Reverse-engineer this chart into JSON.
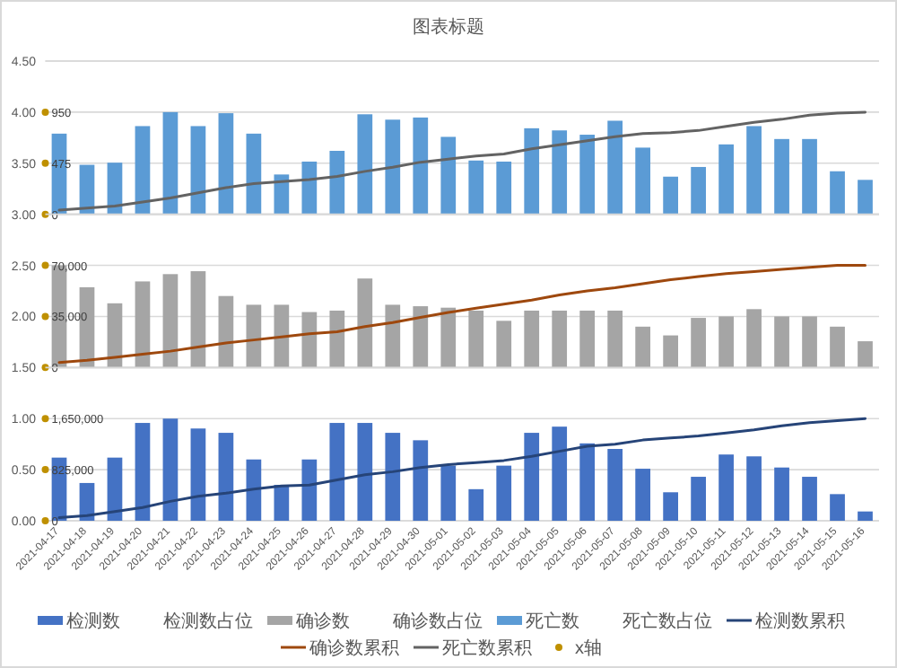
{
  "chart_data": [
    {
      "type": "bar",
      "title": "图表标题",
      "tick_labels": "y",
      "legend": "bottom",
      "categories": [
        "2021-04-17",
        "2021-04-18",
        "2021-04-19",
        "2021-04-20",
        "2021-04-21",
        "2021-04-22",
        "2021-04-23",
        "2021-04-24",
        "2021-04-25",
        "2021-04-26",
        "2021-04-27",
        "2021-04-28",
        "2021-04-29",
        "2021-04-30",
        "2021-05-01",
        "2021-05-02",
        "2021-05-03",
        "2021-05-04",
        "2021-05-05",
        "2021-05-06",
        "2021-05-07",
        "2021-05-08",
        "2021-05-09",
        "2021-05-10",
        "2021-05-11",
        "2021-05-12",
        "2021-05-13",
        "2021-05-14",
        "2021-05-15",
        "2021-05-16"
      ],
      "ylim": [
        3,
        4.5
      ],
      "yticks": [
        {
          "value": 3,
          "label": "3.00"
        },
        {
          "value": 3.5,
          "label": "3.50"
        },
        {
          "value": 4,
          "label": "4.00"
        },
        {
          "value": 4.5,
          "label": "4.50"
        }
      ],
      "y2lim": [
        0,
        1425
      ],
      "y2ticks": [
        0,
        475,
        950
      ],
      "grid": "y",
      "series": [
        {
          "name": "死亡数",
          "color": "#5b9bd5",
          "axis": "y2",
          "values": [
            750,
            460,
            480,
            820,
            950,
            820,
            940,
            750,
            370,
            490,
            590,
            930,
            880,
            900,
            720,
            500,
            490,
            800,
            780,
            740,
            870,
            620,
            350,
            440,
            650,
            820,
            700,
            700,
            400,
            320
          ]
        },
        {
          "name": "死亡数占位",
          "color": null,
          "axis": "y2",
          "values": [
            null,
            null,
            null,
            null,
            null,
            null,
            null,
            null,
            null,
            null,
            null,
            null,
            null,
            null,
            null,
            null,
            null,
            null,
            null,
            null,
            null,
            null,
            null,
            null,
            null,
            null,
            null,
            null,
            null,
            null
          ]
        },
        {
          "name": "死亡数累积",
          "type": "line",
          "color": "#636363",
          "values": [
            3.04,
            3.06,
            3.08,
            3.12,
            3.16,
            3.21,
            3.26,
            3.3,
            3.32,
            3.34,
            3.37,
            3.42,
            3.46,
            3.51,
            3.54,
            3.57,
            3.59,
            3.64,
            3.68,
            3.72,
            3.76,
            3.79,
            3.8,
            3.82,
            3.86,
            3.9,
            3.93,
            3.97,
            3.99,
            4.0
          ]
        }
      ]
    },
    {
      "type": "bar",
      "tick_labels": "y",
      "legend": "bottom",
      "categories": [
        "2021-04-17",
        "2021-04-18",
        "2021-04-19",
        "2021-04-20",
        "2021-04-21",
        "2021-04-22",
        "2021-04-23",
        "2021-04-24",
        "2021-04-25",
        "2021-04-26",
        "2021-04-27",
        "2021-04-28",
        "2021-04-29",
        "2021-04-30",
        "2021-05-01",
        "2021-05-02",
        "2021-05-03",
        "2021-05-04",
        "2021-05-05",
        "2021-05-06",
        "2021-05-07",
        "2021-05-08",
        "2021-05-09",
        "2021-05-10",
        "2021-05-11",
        "2021-05-12",
        "2021-05-13",
        "2021-05-14",
        "2021-05-15",
        "2021-05-16"
      ],
      "ylim": [
        1.5,
        3
      ],
      "yticks": [
        {
          "value": 1.5,
          "label": "1.50"
        },
        {
          "value": 2,
          "label": "2.00"
        },
        {
          "value": 2.5,
          "label": "2.50"
        }
      ],
      "y2lim": [
        0,
        105000
      ],
      "y2ticks": [
        0,
        {
          "value": 35000,
          "label": "35,000"
        },
        {
          "value": 70000,
          "label": "70,000"
        }
      ],
      "grid": "y",
      "series": [
        {
          "name": "确诊数",
          "color": "#a5a5a5",
          "axis": "y2",
          "values": [
            70000,
            55000,
            44000,
            59000,
            64000,
            66000,
            49000,
            43000,
            43000,
            38000,
            39000,
            61000,
            43000,
            42000,
            41000,
            39000,
            32000,
            39000,
            39000,
            39000,
            39000,
            28000,
            22000,
            34000,
            35000,
            40000,
            35000,
            35000,
            28000,
            18000
          ]
        },
        {
          "name": "确诊数占位",
          "color": null,
          "axis": "y2",
          "values": [
            null,
            null,
            null,
            null,
            null,
            null,
            null,
            null,
            null,
            null,
            null,
            null,
            null,
            null,
            null,
            null,
            null,
            null,
            null,
            null,
            null,
            null,
            null,
            null,
            null,
            null,
            null,
            null,
            null,
            null
          ]
        },
        {
          "name": "确诊数累积",
          "type": "line",
          "color": "#9e480e",
          "values": [
            1.55,
            1.57,
            1.6,
            1.63,
            1.66,
            1.7,
            1.74,
            1.77,
            1.8,
            1.83,
            1.85,
            1.9,
            1.94,
            1.99,
            2.04,
            2.08,
            2.12,
            2.16,
            2.21,
            2.25,
            2.28,
            2.32,
            2.36,
            2.39,
            2.42,
            2.44,
            2.46,
            2.48,
            2.5,
            2.5
          ]
        }
      ]
    },
    {
      "type": "bar",
      "legend": "bottom",
      "categories": [
        "2021-04-17",
        "2021-04-18",
        "2021-04-19",
        "2021-04-20",
        "2021-04-21",
        "2021-04-22",
        "2021-04-23",
        "2021-04-24",
        "2021-04-25",
        "2021-04-26",
        "2021-04-27",
        "2021-04-28",
        "2021-04-29",
        "2021-04-30",
        "2021-05-01",
        "2021-05-02",
        "2021-05-03",
        "2021-05-04",
        "2021-05-05",
        "2021-05-06",
        "2021-05-07",
        "2021-05-08",
        "2021-05-09",
        "2021-05-10",
        "2021-05-11",
        "2021-05-12",
        "2021-05-13",
        "2021-05-14",
        "2021-05-15",
        "2021-05-16"
      ],
      "ylim": [
        0,
        1.5
      ],
      "yticks": [
        {
          "value": 0,
          "label": "0.00"
        },
        {
          "value": 0.5,
          "label": "0.50"
        },
        {
          "value": 1,
          "label": "1.00"
        }
      ],
      "y2lim": [
        0,
        2475000
      ],
      "y2ticks": [
        0,
        {
          "value": 825000,
          "label": "825,000"
        },
        {
          "value": 1650000,
          "label": "1,650,000"
        }
      ],
      "grid": "y",
      "series": [
        {
          "name": "检测数",
          "color": "#4472c4",
          "axis": "y2",
          "values": [
            1020000,
            610000,
            1020000,
            1580000,
            1650000,
            1490000,
            1420000,
            990000,
            580000,
            990000,
            1580000,
            1580000,
            1420000,
            1300000,
            890000,
            510000,
            890000,
            1420000,
            1520000,
            1250000,
            1160000,
            840000,
            460000,
            710000,
            1070000,
            1040000,
            860000,
            710000,
            430000,
            150000
          ]
        },
        {
          "name": "检测数占位",
          "color": null,
          "axis": "y2",
          "values": [
            null,
            null,
            null,
            null,
            null,
            null,
            null,
            null,
            null,
            null,
            null,
            null,
            null,
            null,
            null,
            null,
            null,
            null,
            null,
            null,
            null,
            null,
            null,
            null,
            null,
            null,
            null,
            null,
            null,
            null
          ]
        },
        {
          "name": "检测数累积",
          "type": "line",
          "color": "#264478",
          "values": [
            0.03,
            0.05,
            0.09,
            0.13,
            0.19,
            0.24,
            0.27,
            0.31,
            0.34,
            0.35,
            0.4,
            0.45,
            0.48,
            0.52,
            0.55,
            0.57,
            0.59,
            0.63,
            0.68,
            0.73,
            0.75,
            0.79,
            0.81,
            0.83,
            0.86,
            0.89,
            0.93,
            0.96,
            0.98,
            1.0
          ]
        },
        {
          "name": "x轴",
          "type": "scatter",
          "color": "#bf9000",
          "values": [
            null,
            null,
            null,
            null,
            null,
            null,
            null,
            null,
            null,
            null,
            null,
            null,
            null,
            null,
            null,
            null,
            null,
            null,
            null,
            null,
            null,
            null,
            null,
            null,
            null,
            null,
            null,
            null,
            null,
            null
          ]
        }
      ]
    }
  ]
}
